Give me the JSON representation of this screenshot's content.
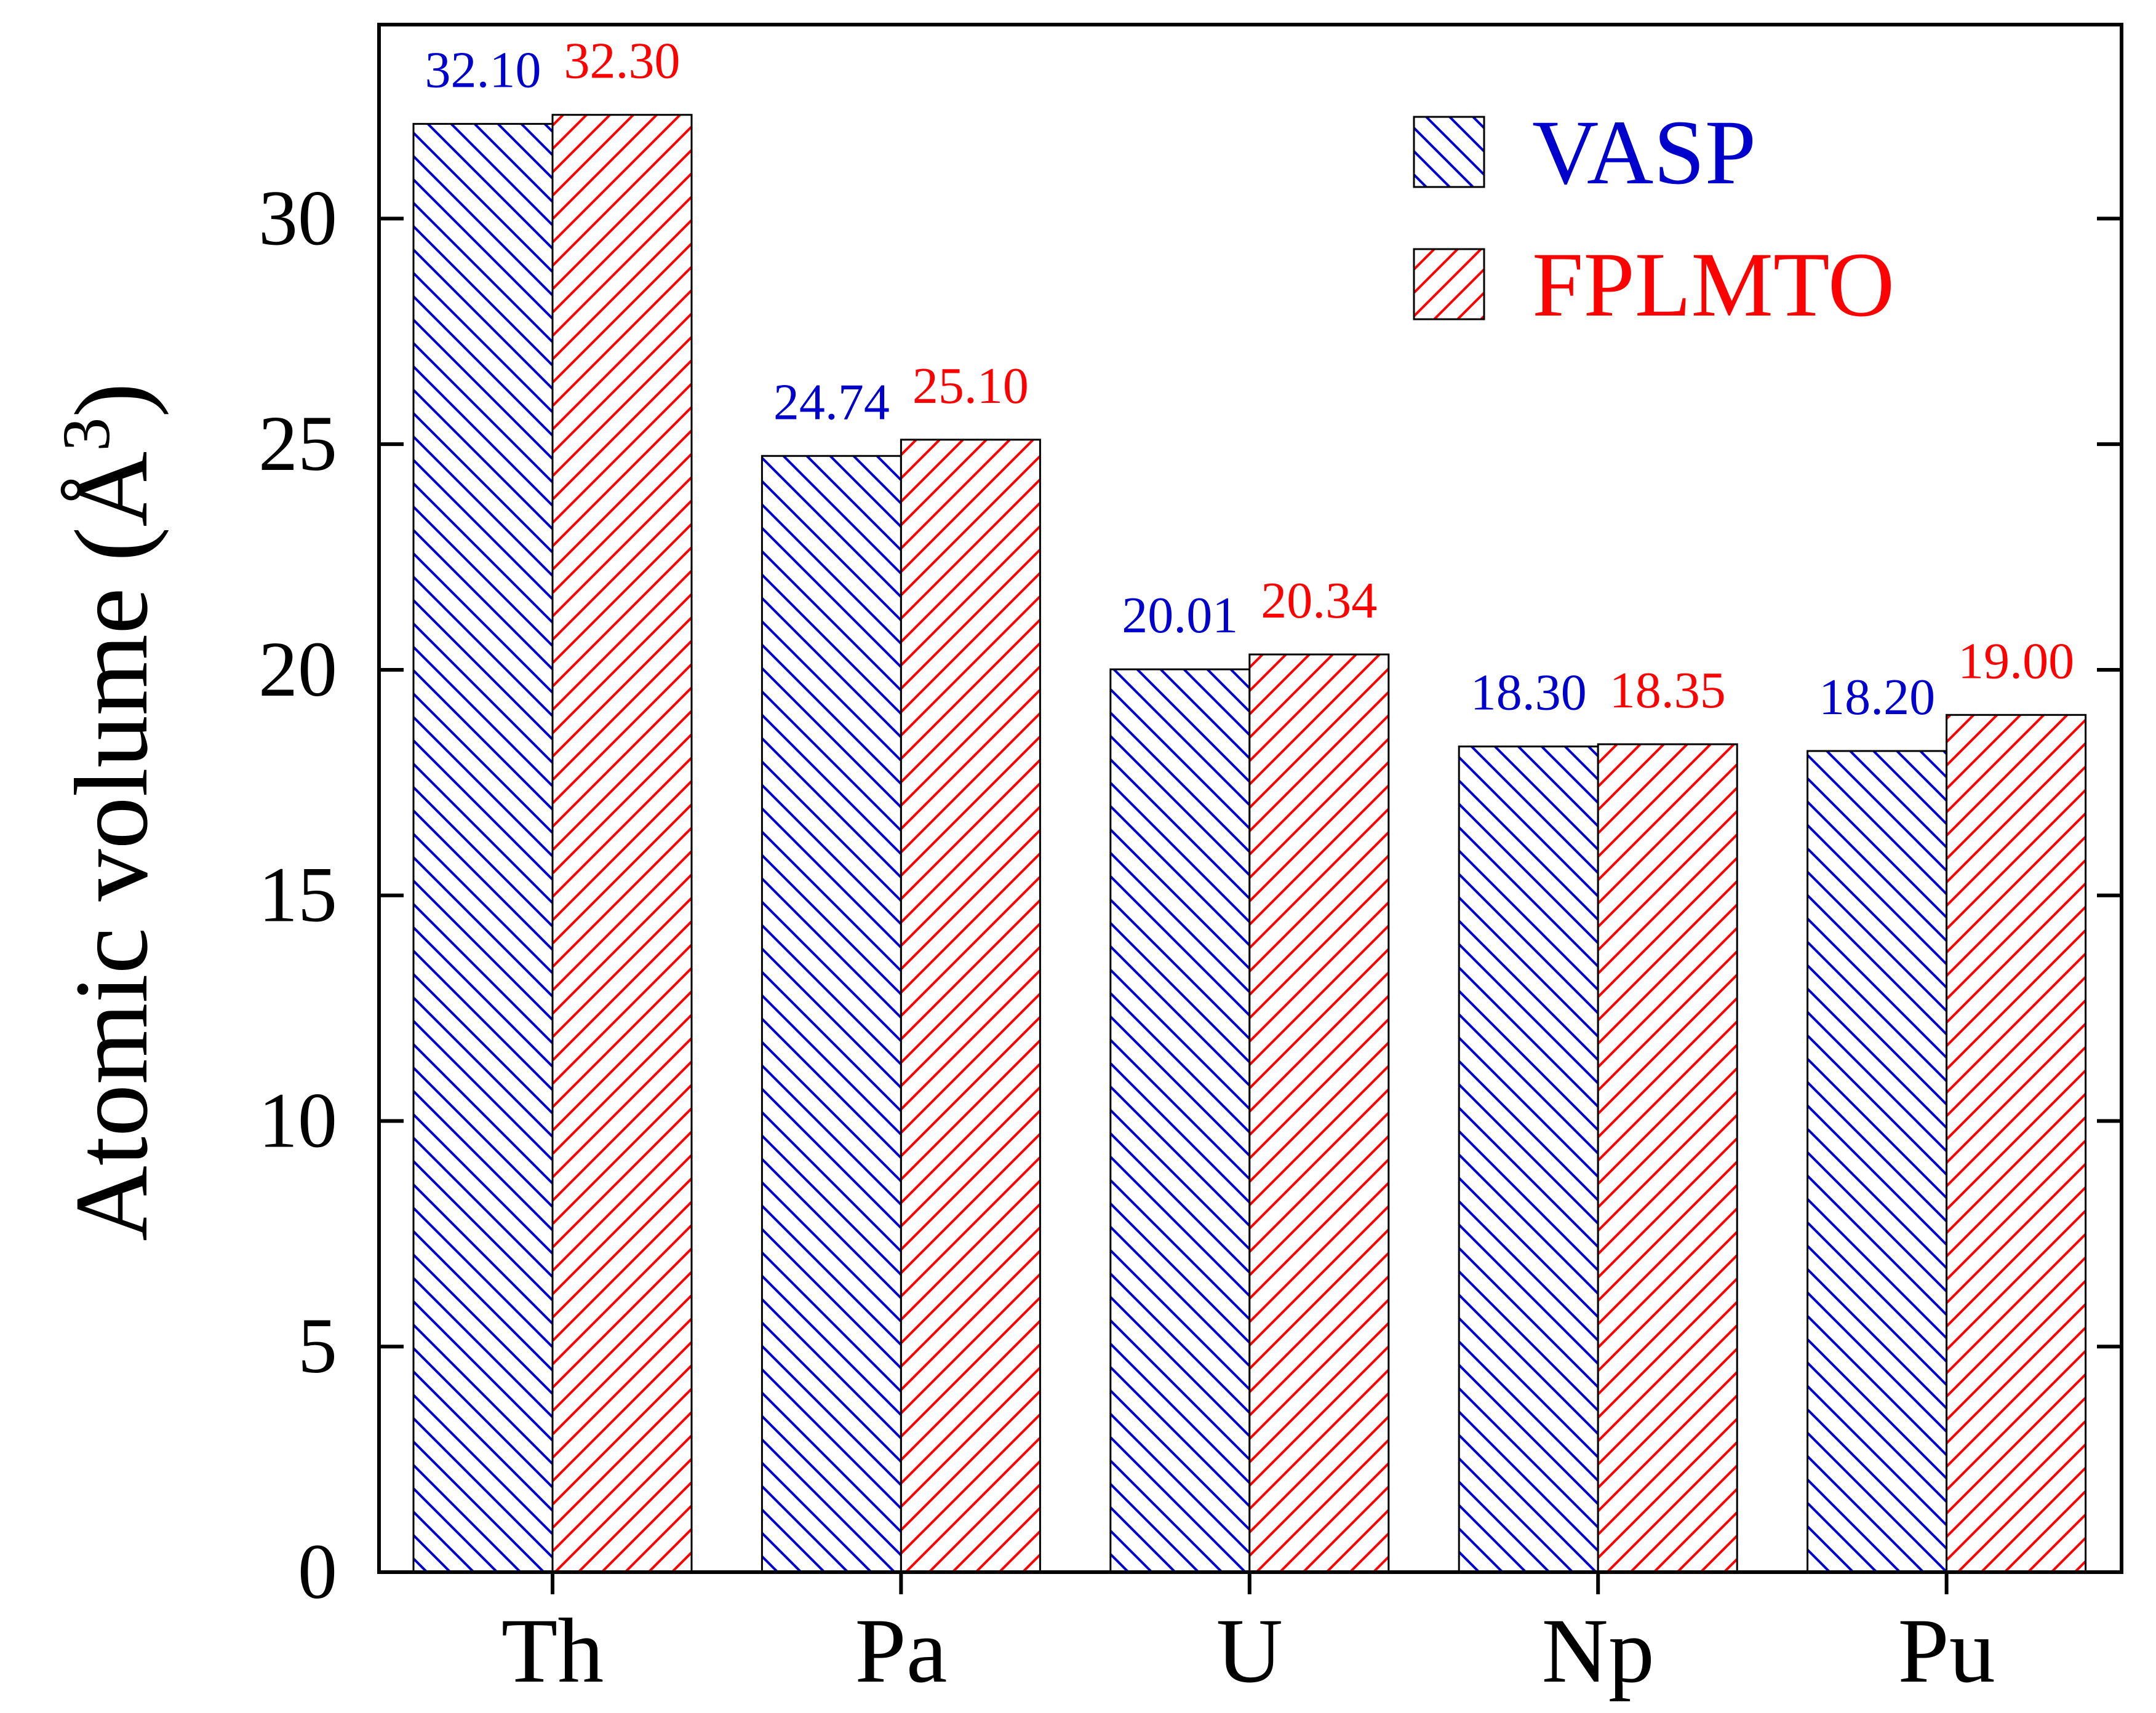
{
  "chart_data": {
    "type": "bar",
    "title": "",
    "xlabel": "",
    "ylabel": "Atomic volume (Å",
    "ylabel_superscript": "3",
    "ylabel_close": ")",
    "categories": [
      "Th",
      "Pa",
      "U",
      "Np",
      "Pu"
    ],
    "ylim": [
      0,
      34.3
    ],
    "yticks": [
      0,
      5,
      10,
      15,
      20,
      25,
      30
    ],
    "ytick_labels": [
      "0",
      "5",
      "10",
      "15",
      "20",
      "25",
      "30"
    ],
    "grid": false,
    "legend_position": "top-right",
    "series": [
      {
        "name": "VASP",
        "values": [
          32.1,
          24.74,
          20.01,
          18.3,
          18.2
        ],
        "value_labels": [
          "32.10",
          "24.74",
          "20.01",
          "18.30",
          "18.20"
        ],
        "color": "#0000cc",
        "hatch": "back-diagonal"
      },
      {
        "name": "FPLMTO",
        "values": [
          32.3,
          25.1,
          20.34,
          18.35,
          19.0
        ],
        "value_labels": [
          "32.30",
          "25.10",
          "20.34",
          "18.35",
          "19.00"
        ],
        "color": "#ff0000",
        "hatch": "forward-diagonal"
      }
    ]
  }
}
